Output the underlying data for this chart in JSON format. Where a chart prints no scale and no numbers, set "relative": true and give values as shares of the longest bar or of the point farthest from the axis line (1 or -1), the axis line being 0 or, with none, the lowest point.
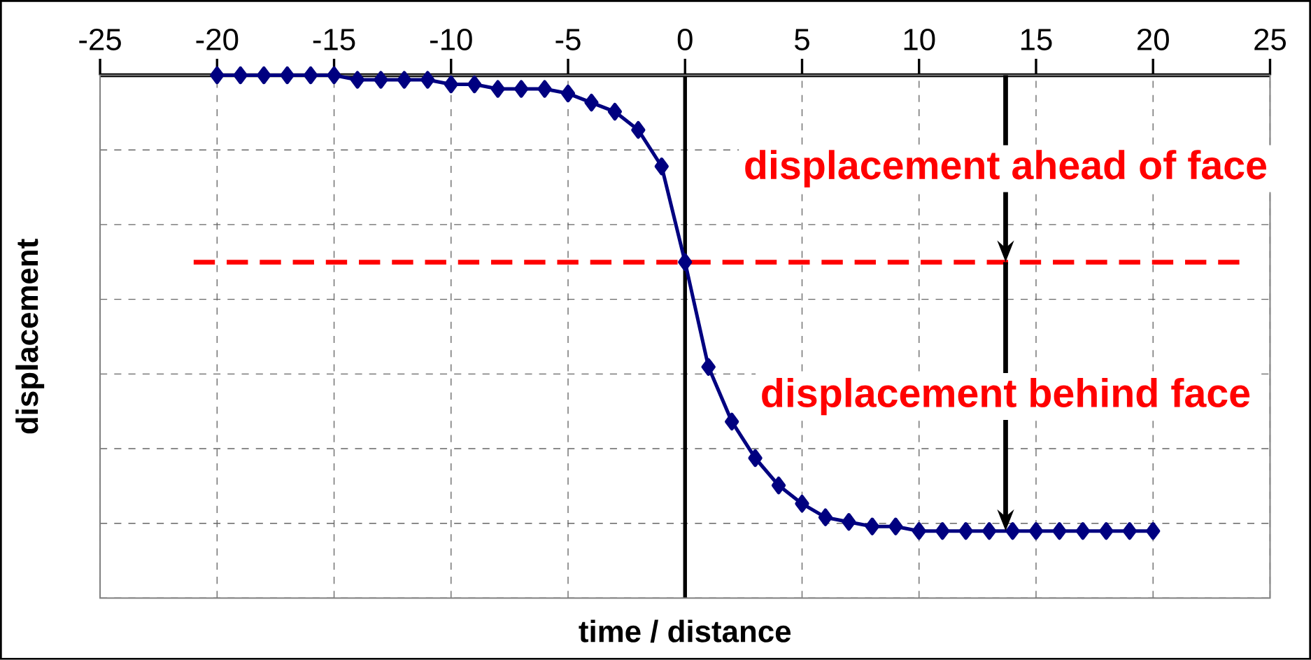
{
  "chart_data": {
    "type": "line",
    "xlabel": "time / distance",
    "ylabel": "displacement",
    "relative": true,
    "x": [
      -20,
      -19,
      -18,
      -17,
      -16,
      -15,
      -14,
      -13,
      -12,
      -11,
      -10,
      -9,
      -8,
      -7,
      -6,
      -5,
      -4,
      -3,
      -2,
      -1,
      0,
      1,
      2,
      3,
      4,
      5,
      6,
      7,
      8,
      9,
      10,
      11,
      12,
      13,
      14,
      15,
      16,
      17,
      18,
      19,
      20
    ],
    "series": [
      {
        "color": "#000080",
        "values": [
          0,
          0,
          0,
          0,
          0,
          0,
          -0.01,
          -0.01,
          -0.01,
          -0.01,
          -0.02,
          -0.02,
          -0.03,
          -0.03,
          -0.03,
          -0.04,
          -0.06,
          -0.08,
          -0.12,
          -0.2,
          -0.41,
          -0.64,
          -0.76,
          -0.84,
          -0.9,
          -0.94,
          -0.97,
          -0.98,
          -0.99,
          -0.99,
          -1,
          -1,
          -1,
          -1,
          -1,
          -1,
          -1,
          -1,
          -1,
          -1,
          -1
        ]
      }
    ],
    "xlim": [
      -25,
      25
    ],
    "xticks": [
      -25,
      -20,
      -15,
      -10,
      -5,
      0,
      5,
      10,
      15,
      20,
      25
    ],
    "grid": true,
    "marker": "diamond",
    "line_style": "solid",
    "ref_lines": [
      {
        "axis": "y",
        "value": -0.41,
        "color": "#ff0000",
        "line_style": "dashed"
      }
    ],
    "annotations": [
      "displacement ahead of face",
      "displacement behind face"
    ]
  }
}
